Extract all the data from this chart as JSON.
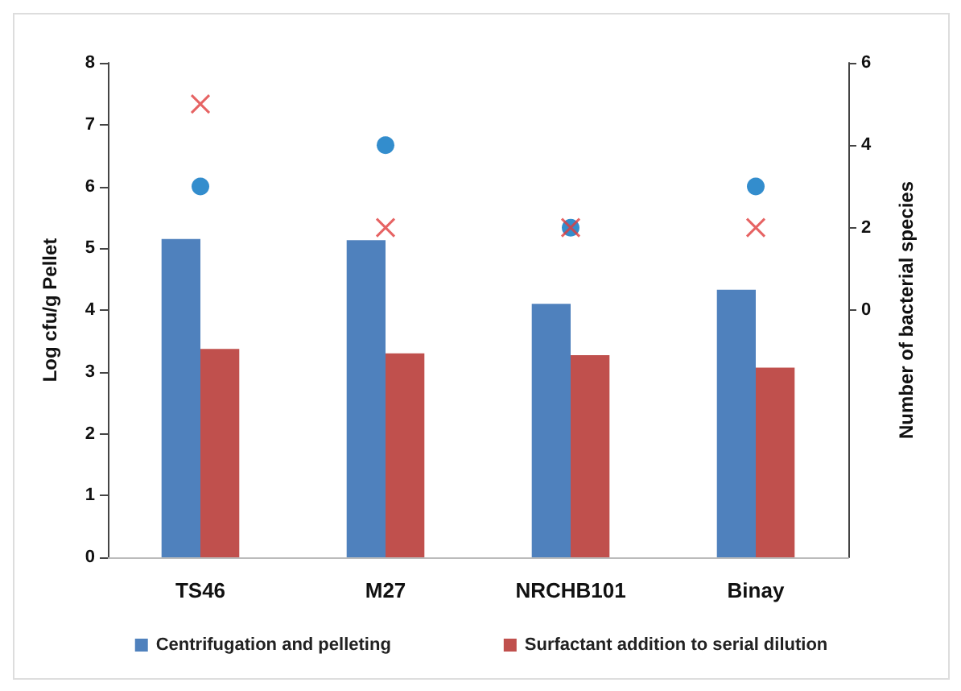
{
  "chart_data": {
    "type": "bar",
    "ylabel": "Log cfu/g Pellet",
    "y2label": "Number of bacterial species",
    "categories": [
      "TS46",
      "M27",
      "NRCHB101",
      "Binay"
    ],
    "series": [
      {
        "name": "Centrifugation and pelleting",
        "color": "#4f81bd",
        "values": [
          5.15,
          5.13,
          4.1,
          4.33
        ]
      },
      {
        "name": "Surfactant addition to serial dilution",
        "color": "#c0504d",
        "values": [
          3.37,
          3.3,
          3.27,
          3.07
        ]
      },
      {
        "type": "scatter",
        "axis": "y2",
        "marker": "circle",
        "color": "#0070c0",
        "values": [
          3,
          4,
          2,
          3
        ]
      },
      {
        "type": "scatter",
        "axis": "y2",
        "marker": "cross",
        "color": "#e03c3c",
        "values": [
          5,
          2,
          2,
          2
        ]
      }
    ],
    "ylim": [
      0,
      8
    ],
    "yticks": [
      0,
      1,
      2,
      3,
      4,
      5,
      6,
      7,
      8
    ],
    "y2lim": [
      -6,
      6
    ],
    "y2ticks": [
      0,
      2,
      4,
      6
    ],
    "grid": false,
    "legend": "bottom"
  }
}
